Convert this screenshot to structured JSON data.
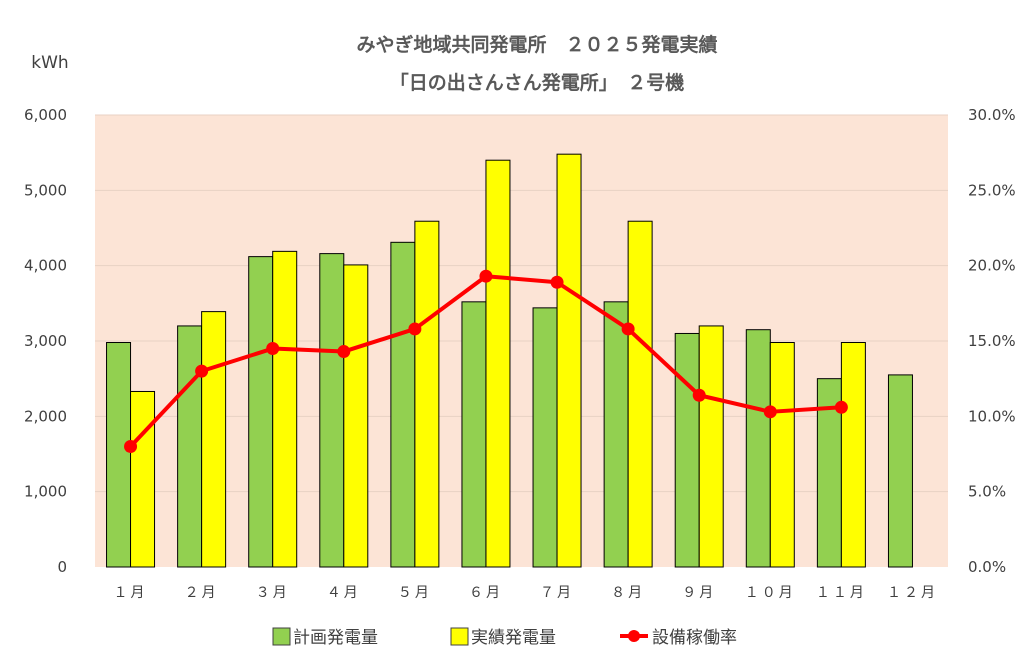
{
  "chart_data": {
    "type": "bar",
    "title": "みやぎ地域共同発電所　２０２５発電実績",
    "subtitle": "「日の出さんさん発電所」　２号機",
    "ylabel": "kWh",
    "categories": [
      "１月",
      "２月",
      "３月",
      "４月",
      "５月",
      "６月",
      "７月",
      "８月",
      "９月",
      "１０月",
      "１１月",
      "１２月"
    ],
    "series": [
      {
        "name": "計画発電量",
        "type": "bar",
        "axis": "left",
        "color": "#92D050",
        "values": [
          2980,
          3200,
          4120,
          4160,
          4310,
          3520,
          3440,
          3520,
          3100,
          3150,
          2500,
          2550
        ]
      },
      {
        "name": "実績発電量",
        "type": "bar",
        "axis": "left",
        "color": "#FFFF00",
        "values": [
          2330,
          3390,
          4190,
          4010,
          4590,
          5400,
          5480,
          4590,
          3200,
          2980,
          2980,
          null
        ]
      },
      {
        "name": "設備稼働率",
        "type": "line",
        "axis": "right",
        "color": "#FF0000",
        "values": [
          8.0,
          13.0,
          14.5,
          14.3,
          15.8,
          19.3,
          18.9,
          15.8,
          11.4,
          10.3,
          10.6,
          null
        ]
      }
    ],
    "ylim": [
      0,
      6000
    ],
    "y_ticks": [
      "0",
      "1,000",
      "2,000",
      "3,000",
      "4,000",
      "5,000",
      "6,000"
    ],
    "y2lim": [
      0,
      30
    ],
    "y2_ticks": [
      "0.0%",
      "5.0%",
      "10.0%",
      "15.0%",
      "20.0%",
      "25.0%",
      "30.0%"
    ],
    "grid": true,
    "legend_position": "bottom",
    "plot_background": "#FCE4D6"
  }
}
